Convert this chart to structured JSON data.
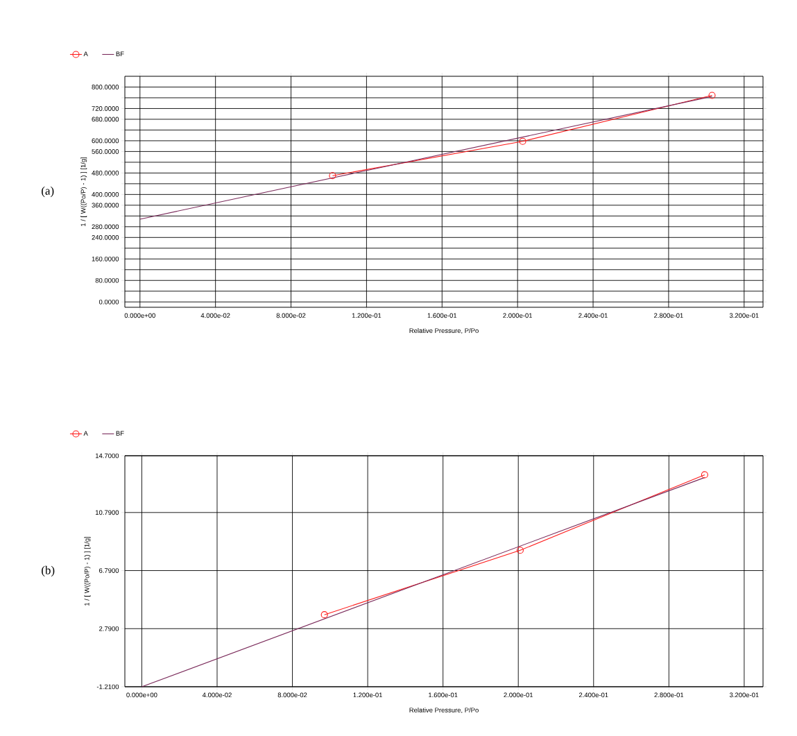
{
  "chart_data": [
    {
      "type": "line",
      "annotations": [
        "(a)"
      ],
      "xlabel": "Relative Pressure, P/Po",
      "ylabel": "1 / [ W((Po/P) - 1) ] [1/g]",
      "series": [
        {
          "name": "A",
          "color": "#ff1a1a",
          "marker": "circle",
          "x": [
            0.102,
            0.2027,
            0.303
          ],
          "values": [
            470,
            598,
            769
          ]
        },
        {
          "name": "BF",
          "color": "#7a2a5a",
          "marker": "none",
          "x": [
            0,
            0.303
          ],
          "values": [
            308,
            765
          ]
        }
      ],
      "xlim": [
        -0.008,
        0.33
      ],
      "ylim": [
        -20,
        840
      ],
      "xticks": [
        {
          "value": 0,
          "label": "0.000e+00"
        },
        {
          "value": 0.04,
          "label": "4.000e-02"
        },
        {
          "value": 0.08,
          "label": "8.000e-02"
        },
        {
          "value": 0.12,
          "label": "1.200e-01"
        },
        {
          "value": 0.16,
          "label": "1.600e-01"
        },
        {
          "value": 0.2,
          "label": "2.000e-01"
        },
        {
          "value": 0.24,
          "label": "2.400e-01"
        },
        {
          "value": 0.28,
          "label": "2.800e-01"
        },
        {
          "value": 0.32,
          "label": "3.200e-01"
        }
      ],
      "yticks": [
        {
          "value": 0,
          "label": "0.0000"
        },
        {
          "value": 40,
          "label": null
        },
        {
          "value": 80,
          "label": "80.0000"
        },
        {
          "value": 120,
          "label": null
        },
        {
          "value": 160,
          "label": "160.0000"
        },
        {
          "value": 200,
          "label": null
        },
        {
          "value": 240,
          "label": "240.0000"
        },
        {
          "value": 280,
          "label": "280.0000"
        },
        {
          "value": 320,
          "label": null
        },
        {
          "value": 360,
          "label": "360.0000"
        },
        {
          "value": 400,
          "label": "400.0000"
        },
        {
          "value": 440,
          "label": null
        },
        {
          "value": 480,
          "label": "480.0000"
        },
        {
          "value": 520,
          "label": null
        },
        {
          "value": 560,
          "label": "560.0000"
        },
        {
          "value": 600,
          "label": "600.0000"
        },
        {
          "value": 640,
          "label": null
        },
        {
          "value": 680,
          "label": "680.0000"
        },
        {
          "value": 720,
          "label": "720.0000"
        },
        {
          "value": 760,
          "label": null
        },
        {
          "value": 800,
          "label": "800.0000"
        }
      ],
      "grid": true,
      "legend": "top left"
    },
    {
      "type": "line",
      "annotations": [
        "(b)"
      ],
      "xlabel": "Relative Pressure, P/Po",
      "ylabel": "1 / [ W((Po/P) - 1) ] [1/g]",
      "series": [
        {
          "name": "A",
          "color": "#ff1a1a",
          "marker": "circle",
          "x": [
            0.097,
            0.201,
            0.299
          ],
          "values": [
            3.75,
            8.19,
            13.39
          ]
        },
        {
          "name": "BF",
          "color": "#7a2a5a",
          "marker": "none",
          "x": [
            0,
            0.299
          ],
          "values": [
            -1.21,
            13.2
          ]
        }
      ],
      "xlim": [
        -0.009,
        0.33
      ],
      "ylim": [
        -1.21,
        14.7
      ],
      "xticks": [
        {
          "value": 0,
          "label": "0.000e+00"
        },
        {
          "value": 0.04,
          "label": "4.000e-02"
        },
        {
          "value": 0.08,
          "label": "8.000e-02"
        },
        {
          "value": 0.12,
          "label": "1.200e-01"
        },
        {
          "value": 0.16,
          "label": "1.600e-01"
        },
        {
          "value": 0.2,
          "label": "2.000e-01"
        },
        {
          "value": 0.24,
          "label": "2.400e-01"
        },
        {
          "value": 0.28,
          "label": "2.800e-01"
        },
        {
          "value": 0.32,
          "label": "3.200e-01"
        }
      ],
      "yticks": [
        {
          "value": -1.21,
          "label": "-1.2100"
        },
        {
          "value": 2.79,
          "label": "2.7900"
        },
        {
          "value": 6.79,
          "label": "6.7900"
        },
        {
          "value": 10.79,
          "label": "10.7900"
        },
        {
          "value": 14.7,
          "label": "14.7000"
        }
      ],
      "grid": true,
      "legend": "top left"
    }
  ]
}
